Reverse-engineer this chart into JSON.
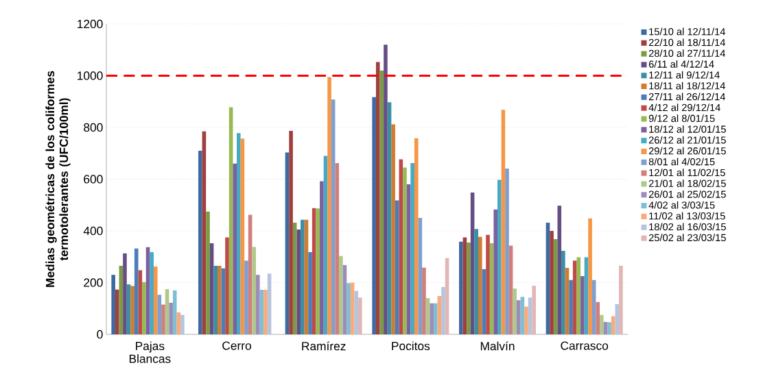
{
  "chart_data": {
    "type": "bar",
    "ylabel": "Medias geométricas de los coliformes termotolerantes (UFC/100ml)",
    "categories": [
      "Pajas Blancas",
      "Cerro",
      "Ramírez",
      "Pocitos",
      "Malvín",
      "Carrasco"
    ],
    "ylim": [
      0,
      1200
    ],
    "yticks": [
      0,
      200,
      400,
      600,
      800,
      1000,
      1200
    ],
    "grid": "y",
    "legend": "right",
    "ref_lines": [
      {
        "axis": "y",
        "value": 1000,
        "color": "#ff0000",
        "line_style": "dashed"
      }
    ],
    "series": [
      {
        "name": "15/10 al 12/11/14",
        "color": "#3d6aa0",
        "values": [
          230,
          710,
          703,
          917,
          358,
          432
        ]
      },
      {
        "name": "22/10 al 18/11/14",
        "color": "#a0403e",
        "values": [
          173,
          785,
          787,
          1053,
          375,
          400
        ]
      },
      {
        "name": "28/10 al 27/11/14",
        "color": "#7d9a45",
        "values": [
          265,
          475,
          432,
          1020,
          355,
          368
        ]
      },
      {
        "name": "6/11 al 4/12/14",
        "color": "#654e85",
        "values": [
          313,
          352,
          405,
          1120,
          548,
          497
        ]
      },
      {
        "name": "12/11 al 9/12/14",
        "color": "#3a8fa3",
        "values": [
          193,
          265,
          443,
          897,
          407,
          323
        ]
      },
      {
        "name": "18/11 al 18/12/14",
        "color": "#d07c33",
        "values": [
          187,
          265,
          443,
          812,
          377,
          257
        ]
      },
      {
        "name": "27/11 al 26/12/14",
        "color": "#4a7ebb",
        "values": [
          332,
          255,
          318,
          518,
          252,
          210
        ]
      },
      {
        "name": "4/12 al 29/12/14",
        "color": "#be4b48",
        "values": [
          248,
          375,
          488,
          677,
          385,
          285
        ]
      },
      {
        "name": "9/12 al 8/01/15",
        "color": "#98b954",
        "values": [
          202,
          878,
          487,
          645,
          352,
          298
        ]
      },
      {
        "name": "18/12 al 12/01/15",
        "color": "#7d60a0",
        "values": [
          337,
          660,
          592,
          580,
          483,
          225
        ]
      },
      {
        "name": "26/12 al 21/01/15",
        "color": "#46aac5",
        "values": [
          318,
          778,
          690,
          662,
          597,
          298
        ]
      },
      {
        "name": "29/12 al 26/01/15",
        "color": "#f79646",
        "values": [
          262,
          757,
          995,
          758,
          868,
          448
        ]
      },
      {
        "name": "8/01 al 4/02/15",
        "color": "#7f9fcf",
        "values": [
          153,
          285,
          908,
          450,
          641,
          210
        ]
      },
      {
        "name": "12/01 al 11/02/15",
        "color": "#d07f7d",
        "values": [
          115,
          462,
          662,
          258,
          343,
          125
        ]
      },
      {
        "name": "21/01 al 18/02/15",
        "color": "#b0c88c",
        "values": [
          175,
          338,
          303,
          140,
          177,
          75
        ]
      },
      {
        "name": "26/01 al 25/02/15",
        "color": "#9d8cba",
        "values": [
          122,
          230,
          268,
          120,
          132,
          48
        ]
      },
      {
        "name": "4/02 al 3/03/15",
        "color": "#7fbfd3",
        "values": [
          170,
          172,
          198,
          120,
          145,
          47
        ]
      },
      {
        "name": "11/02 al 13/03/15",
        "color": "#f9ab79",
        "values": [
          85,
          172,
          200,
          148,
          107,
          70
        ]
      },
      {
        "name": "18/02 al 16/03/15",
        "color": "#b5c4df",
        "values": [
          75,
          235,
          168,
          183,
          142,
          117
        ]
      },
      {
        "name": "25/02 al 23/03/15",
        "color": "#e2b6b5",
        "values": [
          null,
          null,
          142,
          295,
          188,
          265
        ]
      }
    ]
  }
}
